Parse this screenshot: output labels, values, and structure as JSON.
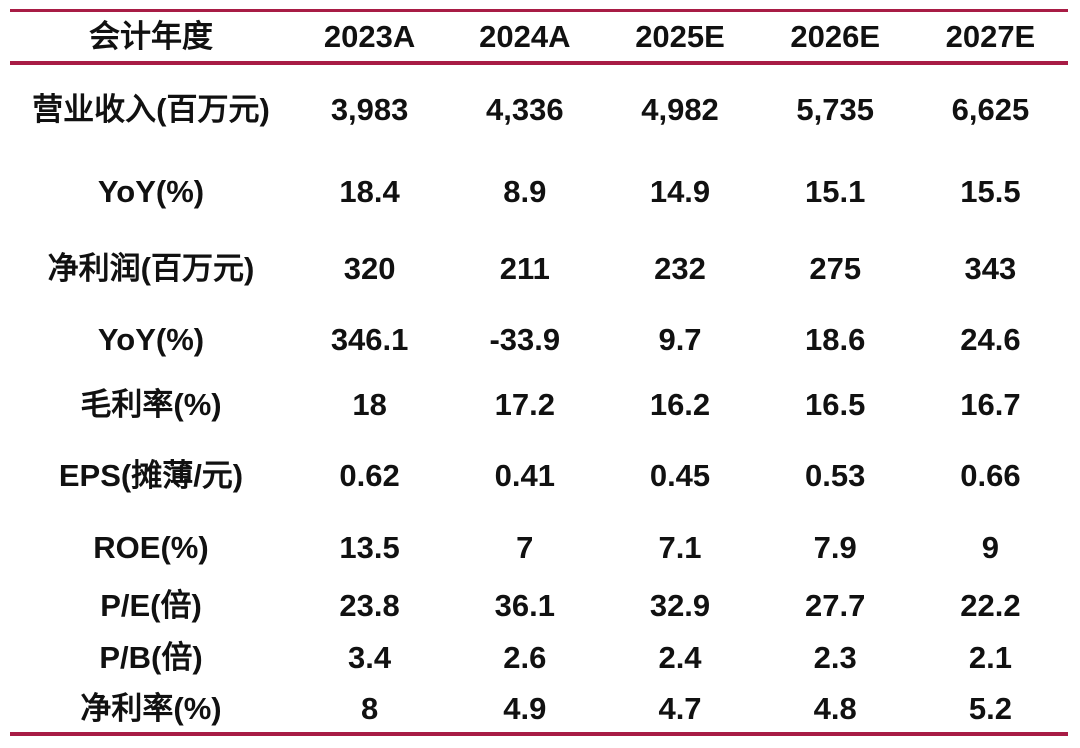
{
  "colors": {
    "accent_rule": "#a81c45",
    "text": "#111111",
    "background": "#ffffff"
  },
  "table": {
    "header": {
      "label": "会计年度",
      "columns": [
        "2023A",
        "2024A",
        "2025E",
        "2026E",
        "2027E"
      ]
    },
    "rows": [
      {
        "label": "营业收入(百万元)",
        "values": [
          "3,983",
          "4,336",
          "4,982",
          "5,735",
          "6,625"
        ]
      },
      {
        "label": "YoY(%)",
        "values": [
          "18.4",
          "8.9",
          "14.9",
          "15.1",
          "15.5"
        ]
      },
      {
        "label": "净利润(百万元)",
        "values": [
          "320",
          "211",
          "232",
          "275",
          "343"
        ]
      },
      {
        "label": "YoY(%)",
        "values": [
          "346.1",
          "-33.9",
          "9.7",
          "18.6",
          "24.6"
        ]
      },
      {
        "label": "毛利率(%)",
        "values": [
          "18",
          "17.2",
          "16.2",
          "16.5",
          "16.7"
        ]
      },
      {
        "label": "EPS(摊薄/元)",
        "values": [
          "0.62",
          "0.41",
          "0.45",
          "0.53",
          "0.66"
        ]
      },
      {
        "label": "ROE(%)",
        "values": [
          "13.5",
          "7",
          "7.1",
          "7.9",
          "9"
        ]
      },
      {
        "label": "P/E(倍)",
        "values": [
          "23.8",
          "36.1",
          "32.9",
          "27.7",
          "22.2"
        ]
      },
      {
        "label": "P/B(倍)",
        "values": [
          "3.4",
          "2.6",
          "2.4",
          "2.3",
          "2.1"
        ]
      },
      {
        "label": "净利率(%)",
        "values": [
          "8",
          "4.9",
          "4.7",
          "4.8",
          "5.2"
        ]
      }
    ]
  }
}
